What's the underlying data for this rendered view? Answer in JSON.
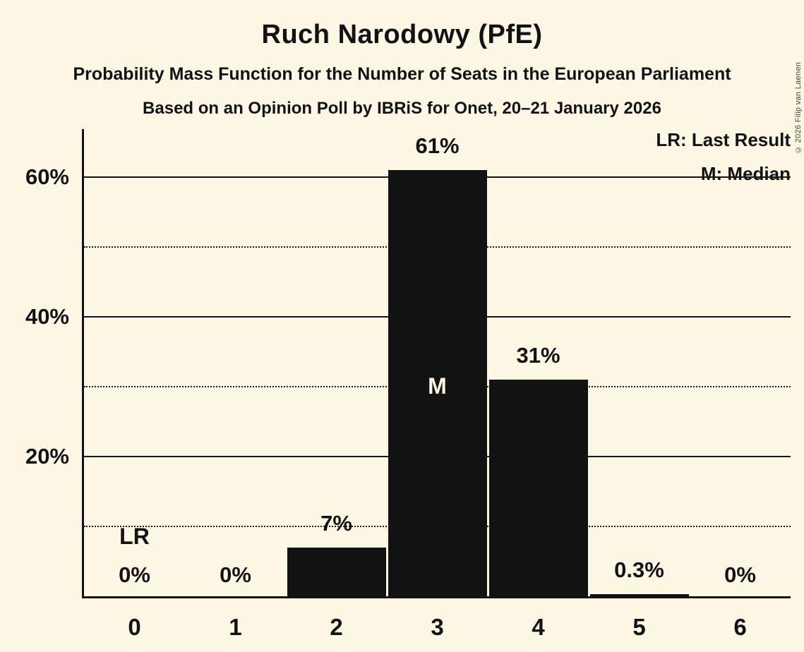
{
  "page": {
    "background_color": "#FCF8E3",
    "copyright": "© 2026 Filip van Laenen"
  },
  "header": {
    "title": "Ruch Narodowy (PfE)",
    "subtitle": "Probability Mass Function for the Number of Seats in the European Parliament",
    "poll_details": "Based on an Opinion Poll by IBRiS for Onet, 20–21 January 2026"
  },
  "legend": {
    "lr": "LR: Last Result",
    "m": "M: Median"
  },
  "chart_data": {
    "type": "bar",
    "title": "Ruch Narodowy (PfE)",
    "xlabel": "",
    "ylabel": "",
    "categories": [
      "0",
      "1",
      "2",
      "3",
      "4",
      "5",
      "6"
    ],
    "values": [
      0,
      0,
      7,
      61,
      31,
      0.3,
      0
    ],
    "value_labels": [
      "0%",
      "0%",
      "7%",
      "61%",
      "31%",
      "0.3%",
      "0%"
    ],
    "ylim": [
      0,
      66.9
    ],
    "y_ticks": [
      {
        "value": 20,
        "label": "20%"
      },
      {
        "value": 40,
        "label": "40%"
      },
      {
        "value": 60,
        "label": "60%"
      }
    ],
    "solid_gridlines": [
      20,
      40,
      60
    ],
    "dotted_gridlines": [
      10,
      30,
      50
    ],
    "grid": true,
    "legend_position": "top-right",
    "legend_entries": [
      "LR: Last Result",
      "M: Median"
    ],
    "annotations": [
      {
        "category_index": 0,
        "text": "LR",
        "placement": "above-value-label",
        "meaning": "Last Result"
      },
      {
        "category_index": 3,
        "text": "M",
        "placement": "inside-bar",
        "meaning": "Median"
      }
    ],
    "bar_color": "#121212",
    "background_color": "#FCF8E3"
  }
}
